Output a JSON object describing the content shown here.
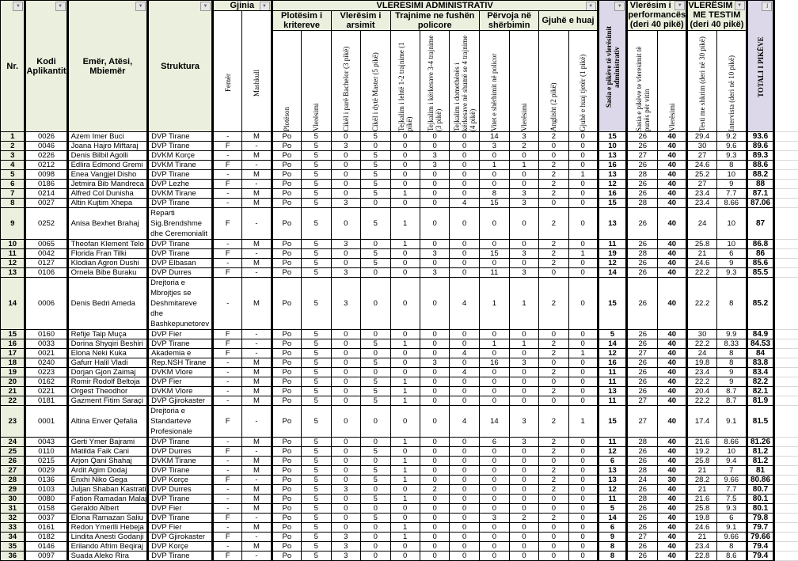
{
  "header": {
    "nr": "Nr.",
    "kodi": "Kodi Aplikantit",
    "emer": "Emër, Atësi, Mbiemër",
    "struktura": "Struktura",
    "gjinia": "Gjinia",
    "femer": "Femër",
    "mashkull": "Mashkull",
    "vleresimi_administrativ": "VLERESIMI ADMINISTRATIV",
    "plotesim": "Plotësim i kritereve",
    "arsimit": "Vlerësim i arsimit",
    "trajnime": "Trajnime ne fushën policore",
    "pervoja": "Përvoja në shërbimin",
    "gjuhe": "Gjuhë e huaj",
    "ploteson": "Plotëson",
    "vleresimi1": "Vlerësimi",
    "cikli1": "Cikël i parë Bachelor (3 pikë)",
    "cikli2": "Cikël i dytë Master (5 pikë)",
    "tejk1": "Tejkalim i lehtë 1-2 trajnime (1 pikë)",
    "tejk2": "Tejkalim i kërkesave 3-4 trajnime  (3 pikë)",
    "tejk3": "Tejkalim i domethënës i kërkesave në shumë se 4 trajnime (4 pikë)",
    "vitet": "Vitet e shërbimit në policor",
    "vleresimi2": "Vlerësimi",
    "anglisht": "Anglisht  (2 pikë)",
    "gjuhe_tjeter": "Gjuhë e huaj tjetër (1 pikë)",
    "sasia_admin": "Sasia e pikëve të vlerësimit administrativ",
    "performance": "Vlerësim i performancës (deri 40 pikë)",
    "perf_sasia": "Sasia e pikëve te vleresimit të punës për vitin",
    "perf_vleresimi": "Vlerësimi",
    "testim": "VLERËSIM ME TESTIM (deri 40 pikë)",
    "test_shkrim": "Testi me shkrim (deri në 30 pikë)",
    "intervista": "Intervista (deri në 10 pikë)",
    "totali": "TOTALI I PIKËVE"
  },
  "rows": [
    [
      "1",
      "0026",
      "Azem Imer Buci",
      "DVP Tirane",
      "-",
      "M",
      "Po",
      "5",
      "0",
      "5",
      "0",
      "0",
      "0",
      "14",
      "3",
      "2",
      "0",
      "15",
      "26",
      "40",
      "29.4",
      "9.2",
      "93.6"
    ],
    [
      "2",
      "0046",
      "Joana Hajro Miftaraj",
      "DVP Tirane",
      "F",
      "-",
      "Po",
      "5",
      "3",
      "0",
      "0",
      "0",
      "0",
      "3",
      "2",
      "0",
      "0",
      "10",
      "26",
      "40",
      "30",
      "9.6",
      "89.6"
    ],
    [
      "3",
      "0226",
      "Denis Bilbil Agolli",
      "DVKM Korçe",
      "-",
      "M",
      "Po",
      "5",
      "0",
      "5",
      "0",
      "3",
      "0",
      "0",
      "0",
      "0",
      "0",
      "13",
      "27",
      "40",
      "27",
      "9.3",
      "89.3"
    ],
    [
      "4",
      "0212",
      "Edlira  Edmond Gremi",
      "DVKM Tirane",
      "F",
      "-",
      "Po",
      "5",
      "0",
      "5",
      "0",
      "3",
      "0",
      "1",
      "1",
      "2",
      "0",
      "16",
      "26",
      "40",
      "24.6",
      "8",
      "88.6"
    ],
    [
      "5",
      "0098",
      "Enea Vangjel Disho",
      "DVP Tirane",
      "-",
      "M",
      "Po",
      "5",
      "0",
      "5",
      "0",
      "0",
      "0",
      "0",
      "0",
      "2",
      "1",
      "13",
      "28",
      "40",
      "25.2",
      "10",
      "88.2"
    ],
    [
      "6",
      "0186",
      "Jetmira Bib Mandreca",
      "DVP Lezhe",
      "F",
      "-",
      "Po",
      "5",
      "0",
      "5",
      "0",
      "0",
      "0",
      "0",
      "0",
      "2",
      "0",
      "12",
      "26",
      "40",
      "27",
      "9",
      "88"
    ],
    [
      "7",
      "0214",
      "Alfred Col Dunisha",
      "DVKM Tirane",
      "-",
      "M",
      "Po",
      "5",
      "0",
      "5",
      "1",
      "0",
      "0",
      "8",
      "3",
      "2",
      "0",
      "16",
      "26",
      "40",
      "23.4",
      "7.7",
      "87.1"
    ],
    [
      "8",
      "0027",
      "Altin Kujtim Xhepa",
      "DVP Tirane",
      "-",
      "M",
      "Po",
      "5",
      "3",
      "0",
      "0",
      "0",
      "4",
      "15",
      "3",
      "0",
      "0",
      "15",
      "28",
      "40",
      "23.4",
      "8.66",
      "87.06"
    ],
    [
      "9",
      "0252",
      "Anisa Bexhet Brahaj",
      "Reparti Sig.Brendshme dhe Ceremonialit",
      "F",
      "-",
      "Po",
      "5",
      "0",
      "5",
      "1",
      "0",
      "0",
      "0",
      "0",
      "2",
      "0",
      "13",
      "26",
      "40",
      "24",
      "10",
      "87"
    ],
    [
      "10",
      "0065",
      "Theofan Klement Telo",
      "DVP Tirane",
      "-",
      "M",
      "Po",
      "5",
      "3",
      "0",
      "1",
      "0",
      "0",
      "0",
      "0",
      "2",
      "0",
      "11",
      "26",
      "40",
      "25.8",
      "10",
      "86.8"
    ],
    [
      "11",
      "0042",
      "Florida Fran Tilki",
      "DVP Tirane",
      "F",
      "-",
      "Po",
      "5",
      "0",
      "5",
      "0",
      "3",
      "0",
      "15",
      "3",
      "2",
      "1",
      "19",
      "28",
      "40",
      "21",
      "6",
      "86"
    ],
    [
      "12",
      "0127",
      "Klodian Agron Dushi",
      "DVP Elbasan",
      "-",
      "M",
      "Po",
      "5",
      "0",
      "5",
      "0",
      "0",
      "0",
      "0",
      "0",
      "2",
      "0",
      "12",
      "26",
      "40",
      "24.6",
      "9",
      "85.6"
    ],
    [
      "13",
      "0106",
      "Ornela Bibe Buraku",
      "DVP Durres",
      "F",
      "-",
      "Po",
      "5",
      "3",
      "0",
      "0",
      "3",
      "0",
      "11",
      "3",
      "0",
      "0",
      "14",
      "26",
      "40",
      "22.2",
      "9.3",
      "85.5"
    ],
    [
      "14",
      "0006",
      "Denis Bedri Ameda",
      "Drejtoria e Mbrojtjes se Deshmitareve dhe Bashkepunetorev",
      "-",
      "M",
      "Po",
      "5",
      "3",
      "0",
      "0",
      "0",
      "4",
      "1",
      "1",
      "2",
      "0",
      "15",
      "26",
      "40",
      "22.2",
      "8",
      "85.2"
    ],
    [
      "15",
      "0160",
      "Refije Taip Muça",
      "DVP Fier",
      "F",
      "-",
      "Po",
      "5",
      "0",
      "0",
      "0",
      "0",
      "0",
      "0",
      "0",
      "0",
      "0",
      "5",
      "26",
      "40",
      "30",
      "9.9",
      "84.9"
    ],
    [
      "16",
      "0033",
      "Dorina Shyqiri Beshiri",
      "DVP Tirane",
      "F",
      "-",
      "Po",
      "5",
      "0",
      "5",
      "1",
      "0",
      "0",
      "1",
      "1",
      "2",
      "0",
      "14",
      "26",
      "40",
      "22.2",
      "8.33",
      "84.53"
    ],
    [
      "17",
      "0021",
      "Elona Neki Kuka",
      "Akademia e",
      "F",
      "-",
      "Po",
      "5",
      "0",
      "0",
      "0",
      "0",
      "4",
      "0",
      "0",
      "2",
      "1",
      "12",
      "27",
      "40",
      "24",
      "8",
      "84"
    ],
    [
      "18",
      "0240",
      "Gafurr Halil Vladi",
      "Rep.NSH Tirane",
      "-",
      "M",
      "Po",
      "5",
      "0",
      "5",
      "0",
      "3",
      "0",
      "16",
      "3",
      "0",
      "0",
      "16",
      "26",
      "40",
      "19.8",
      "8",
      "83.8"
    ],
    [
      "19",
      "0223",
      "Dorjan Gjon Zaimaj",
      "DVKM Vlore",
      "-",
      "M",
      "Po",
      "5",
      "0",
      "0",
      "0",
      "0",
      "4",
      "0",
      "0",
      "2",
      "0",
      "11",
      "26",
      "40",
      "23.4",
      "9",
      "83.4"
    ],
    [
      "20",
      "0162",
      "Romir Rodolf Beltoja",
      "DVP Fier",
      "-",
      "M",
      "Po",
      "5",
      "0",
      "5",
      "1",
      "0",
      "0",
      "0",
      "0",
      "0",
      "0",
      "11",
      "26",
      "40",
      "22.2",
      "9",
      "82.2"
    ],
    [
      "21",
      "0221",
      "Orgest Theodhor",
      "DVKM Vlore",
      "-",
      "M",
      "Po",
      "5",
      "0",
      "5",
      "1",
      "0",
      "0",
      "0",
      "0",
      "2",
      "0",
      "13",
      "26",
      "40",
      "20.4",
      "8.7",
      "82.1"
    ],
    [
      "22",
      "0181",
      "Gazment Fitim Saraçi",
      "DVP Gjirokaster",
      "-",
      "M",
      "Po",
      "5",
      "0",
      "5",
      "1",
      "0",
      "0",
      "0",
      "0",
      "0",
      "0",
      "11",
      "27",
      "40",
      "22.2",
      "8.7",
      "81.9"
    ],
    [
      "23",
      "0001",
      "Altina Enver Qefalia",
      "Drejtoria e Standarteve Profesionale",
      "F",
      "-",
      "Po",
      "5",
      "0",
      "0",
      "0",
      "0",
      "4",
      "14",
      "3",
      "2",
      "1",
      "15",
      "27",
      "40",
      "17.4",
      "9.1",
      "81.5"
    ],
    [
      "24",
      "0043",
      "Gerti Ymer Bajrami",
      "DVP Tirane",
      "-",
      "M",
      "Po",
      "5",
      "0",
      "0",
      "1",
      "0",
      "0",
      "6",
      "3",
      "2",
      "0",
      "11",
      "28",
      "40",
      "21.6",
      "8.66",
      "81.26"
    ],
    [
      "25",
      "0110",
      "Matilda Faik  Cani",
      "DVP Durres",
      "F",
      "-",
      "Po",
      "5",
      "0",
      "5",
      "0",
      "0",
      "0",
      "0",
      "0",
      "2",
      "0",
      "12",
      "26",
      "40",
      "19.2",
      "10",
      "81.2"
    ],
    [
      "26",
      "0215",
      "Arjon Qani Shahaj",
      "DVKM Tirane",
      "-",
      "M",
      "Po",
      "5",
      "0",
      "0",
      "1",
      "0",
      "0",
      "0",
      "0",
      "0",
      "0",
      "6",
      "26",
      "40",
      "25.8",
      "9.4",
      "81.2"
    ],
    [
      "27",
      "0029",
      "Ardit Agim Dodaj",
      "DVP Tirane",
      "-",
      "M",
      "Po",
      "5",
      "0",
      "5",
      "1",
      "0",
      "0",
      "0",
      "0",
      "2",
      "0",
      "13",
      "28",
      "40",
      "21",
      "7",
      "81"
    ],
    [
      "28",
      "0136",
      "Enxhi Niko Gega",
      "DVP Korçe",
      "F",
      "-",
      "Po",
      "5",
      "0",
      "5",
      "1",
      "0",
      "0",
      "0",
      "0",
      "2",
      "0",
      "13",
      "24",
      "30",
      "28.2",
      "9.66",
      "80.86"
    ],
    [
      "29",
      "0103",
      "Juljan Shaban Kastrati",
      "DVP Durres",
      "-",
      "M",
      "Po",
      "5",
      "3",
      "0",
      "0",
      "2",
      "0",
      "0",
      "0",
      "2",
      "0",
      "12",
      "26",
      "40",
      "21",
      "7.7",
      "80.7"
    ],
    [
      "30",
      "0080",
      "Fation Ramadan Malaj",
      "DVP Tirane",
      "-",
      "M",
      "Po",
      "5",
      "0",
      "5",
      "1",
      "0",
      "0",
      "0",
      "0",
      "0",
      "0",
      "11",
      "28",
      "40",
      "21.6",
      "7.5",
      "80.1"
    ],
    [
      "31",
      "0158",
      "Geraldo Albert",
      "DVP Fier",
      "-",
      "M",
      "Po",
      "5",
      "0",
      "0",
      "0",
      "0",
      "0",
      "0",
      "0",
      "0",
      "0",
      "5",
      "26",
      "40",
      "25.8",
      "9.3",
      "80.1"
    ],
    [
      "32",
      "0037",
      "Elona Ramazan Saliu",
      "DVP Tirane",
      "F",
      "-",
      "Po",
      "5",
      "0",
      "5",
      "0",
      "0",
      "0",
      "3",
      "2",
      "2",
      "0",
      "14",
      "26",
      "40",
      "19.8",
      "6",
      "79.8"
    ],
    [
      "33",
      "0161",
      "Redon Ymerlli Hebeja",
      "DVP Fier",
      "-",
      "M",
      "Po",
      "5",
      "0",
      "0",
      "1",
      "0",
      "0",
      "0",
      "0",
      "0",
      "0",
      "6",
      "26",
      "40",
      "24.6",
      "9.1",
      "79.7"
    ],
    [
      "34",
      "0182",
      "Lindita Anesti Godanji",
      "DVP Gjirokaster",
      "F",
      "-",
      "Po",
      "5",
      "3",
      "0",
      "1",
      "0",
      "0",
      "0",
      "0",
      "0",
      "0",
      "9",
      "27",
      "40",
      "21",
      "9.66",
      "79.66"
    ],
    [
      "35",
      "0146",
      "Erilando Afrim Beqiraj",
      "DVP Korçe",
      "-",
      "M",
      "Po",
      "5",
      "3",
      "0",
      "0",
      "0",
      "0",
      "0",
      "0",
      "0",
      "0",
      "8",
      "26",
      "40",
      "23.4",
      "8",
      "79.4"
    ],
    [
      "36",
      "0097",
      "Suada Aleko Rira",
      "DVP Tirane",
      "F",
      "-",
      "Po",
      "5",
      "3",
      "0",
      "0",
      "0",
      "0",
      "0",
      "0",
      "0",
      "0",
      "8",
      "26",
      "40",
      "22.8",
      "8.6",
      "79.4"
    ]
  ],
  "colors": {
    "header_green": "#ebf0de",
    "header_lavender": "#dcd8e9"
  }
}
